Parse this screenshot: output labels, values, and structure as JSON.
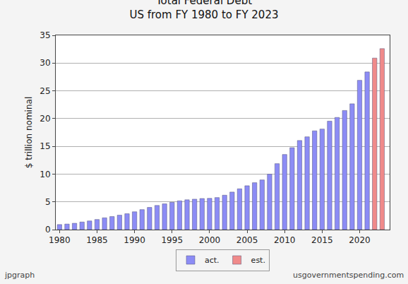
{
  "chart_data": {
    "type": "bar",
    "title": "Total Federal Debt",
    "subtitle": "US from FY 1980 to FY 2023",
    "y_label": "$ trillion nominal",
    "annotations": [
      "jpgraph",
      "usgovernmentspending.com"
    ],
    "series": [
      {
        "name": "act.",
        "color": "#8c8cf5",
        "x": [
          1980,
          1981,
          1982,
          1983,
          1984,
          1985,
          1986,
          1987,
          1988,
          1989,
          1990,
          1991,
          1992,
          1993,
          1994,
          1995,
          1996,
          1997,
          1998,
          1999,
          2000,
          2001,
          2002,
          2003,
          2004,
          2005,
          2006,
          2007,
          2008,
          2009,
          2010,
          2011,
          2012,
          2013,
          2014,
          2015,
          2016,
          2017,
          2018,
          2019,
          2020,
          2021
        ],
        "values": [
          0.91,
          1.0,
          1.14,
          1.37,
          1.56,
          1.82,
          2.12,
          2.35,
          2.6,
          2.86,
          3.21,
          3.6,
          4.0,
          4.35,
          4.64,
          4.92,
          5.18,
          5.37,
          5.48,
          5.6,
          5.63,
          5.77,
          6.2,
          6.76,
          7.35,
          7.9,
          8.45,
          8.95,
          9.99,
          11.88,
          13.53,
          14.76,
          16.05,
          16.72,
          17.79,
          18.12,
          19.54,
          20.21,
          21.46,
          22.67,
          26.9,
          28.4
        ]
      },
      {
        "name": "est.",
        "color": "#f08a8a",
        "x": [
          2022,
          2023
        ],
        "values": [
          30.9,
          32.6
        ]
      }
    ],
    "xlim": [
      1979.5,
      2024
    ],
    "xticks": [
      1980,
      1985,
      1990,
      1995,
      2000,
      2005,
      2010,
      2015,
      2020
    ],
    "ylim": [
      0,
      35
    ],
    "yticks": [
      0,
      5,
      10,
      15,
      20,
      25,
      30,
      35
    ],
    "grid": true,
    "legend": "bottom"
  }
}
